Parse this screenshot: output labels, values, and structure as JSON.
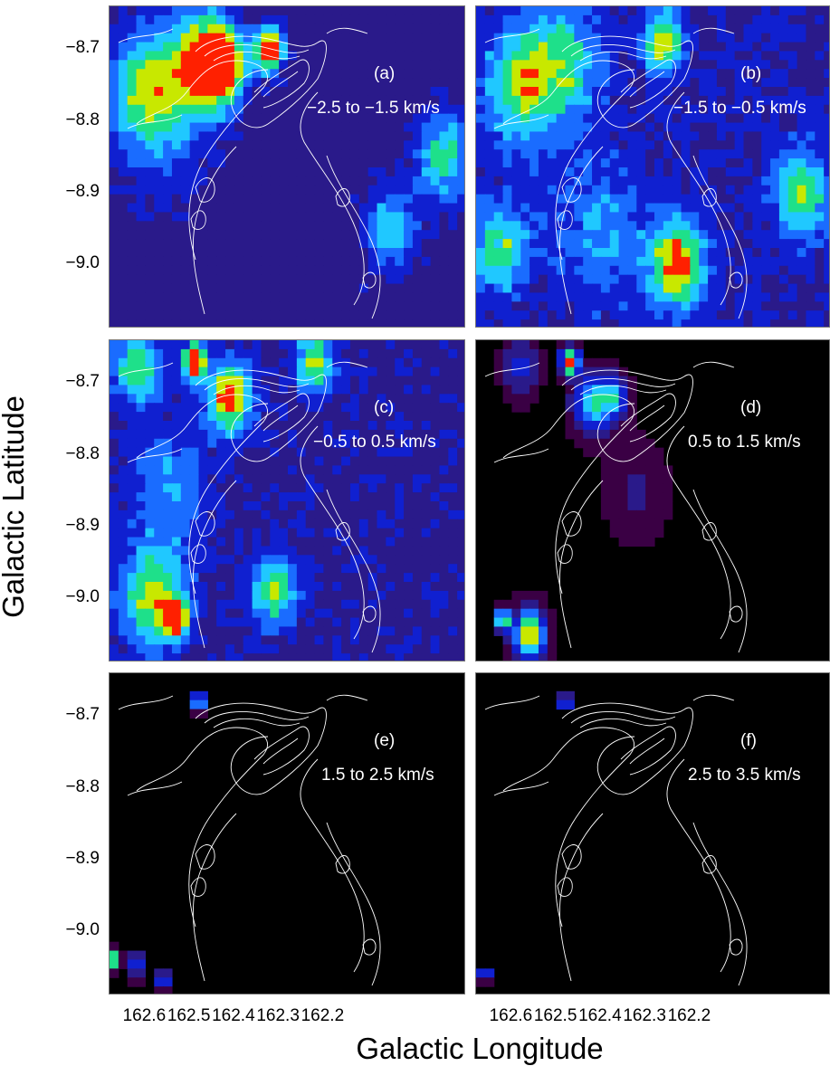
{
  "chart_data": {
    "type": "heatmap",
    "title": "",
    "xlabel": "Galactic Longitude",
    "ylabel": "Galactic Latitude",
    "x_ticks": [
      "162.6",
      "162.5",
      "162.4",
      "162.3",
      "162.2"
    ],
    "y_ticks": [
      "−8.7",
      "−8.8",
      "−8.9",
      "−9.0"
    ],
    "x_range": [
      162.68,
      161.88
    ],
    "y_range": [
      -9.09,
      -8.64
    ],
    "x_tick_values": [
      162.6,
      162.5,
      162.4,
      162.3,
      162.2
    ],
    "y_tick_values": [
      -8.7,
      -8.8,
      -8.9,
      -9.0
    ],
    "colormap": [
      "#000000",
      "#3a0044",
      "#2a1a8a",
      "#1020d0",
      "#1a6cff",
      "#20c8ff",
      "#1ee08a",
      "#c8e800",
      "#ff2000"
    ],
    "contour_color": "#ffffff",
    "panels": [
      {
        "label": "(a)",
        "range": "−2.5 to −1.5 km/s",
        "emission": [
          [
            162.47,
            -8.72,
            0.07,
            0.8
          ],
          [
            162.32,
            -8.7,
            0.03,
            0.98
          ],
          [
            162.6,
            -8.75,
            0.08,
            0.55
          ],
          [
            162.42,
            -8.72,
            0.05,
            0.6
          ],
          [
            161.93,
            -8.85,
            0.06,
            0.5
          ],
          [
            162.05,
            -8.95,
            0.06,
            0.4
          ],
          [
            162.56,
            -8.82,
            0.1,
            0.2
          ]
        ],
        "base": 0.18
      },
      {
        "label": "(b)",
        "range": "−1.5 to −0.5 km/s",
        "emission": [
          [
            162.58,
            -8.75,
            0.08,
            0.5
          ],
          [
            162.26,
            -8.69,
            0.04,
            0.65
          ],
          [
            162.23,
            -9.0,
            0.06,
            0.72
          ],
          [
            162.48,
            -8.72,
            0.08,
            0.4
          ],
          [
            161.95,
            -8.9,
            0.06,
            0.5
          ],
          [
            162.62,
            -8.98,
            0.06,
            0.45
          ],
          [
            162.4,
            -8.95,
            0.1,
            0.25
          ]
        ],
        "base": 0.25
      },
      {
        "label": "(c)",
        "range": "−0.5 to 0.5 km/s",
        "emission": [
          [
            162.49,
            -8.67,
            0.025,
            0.95
          ],
          [
            162.41,
            -8.72,
            0.05,
            0.75
          ],
          [
            162.53,
            -9.03,
            0.025,
            0.9
          ],
          [
            162.58,
            -9.0,
            0.07,
            0.6
          ],
          [
            162.31,
            -8.99,
            0.05,
            0.55
          ],
          [
            162.22,
            -8.67,
            0.04,
            0.6
          ],
          [
            162.62,
            -8.68,
            0.05,
            0.55
          ],
          [
            162.55,
            -8.85,
            0.08,
            0.3
          ]
        ],
        "base": 0.22
      },
      {
        "label": "(d)",
        "range": "0.5 to 1.5 km/s",
        "emission": [
          [
            162.47,
            -8.67,
            0.02,
            0.98
          ],
          [
            162.42,
            -8.73,
            0.04,
            0.62
          ],
          [
            162.56,
            -9.05,
            0.035,
            0.9
          ],
          [
            162.62,
            -9.03,
            0.015,
            0.95
          ],
          [
            162.37,
            -8.72,
            0.03,
            0.5
          ],
          [
            162.58,
            -8.68,
            0.04,
            0.3
          ],
          [
            162.32,
            -8.85,
            0.07,
            0.15
          ]
        ],
        "base": 0.0
      },
      {
        "label": "(e)",
        "range": "1.5 to 2.5 km/s",
        "emission": [
          [
            162.48,
            -8.68,
            0.012,
            0.9
          ],
          [
            162.67,
            -9.04,
            0.012,
            0.95
          ],
          [
            162.56,
            -9.07,
            0.012,
            0.7
          ],
          [
            162.62,
            -9.05,
            0.02,
            0.35
          ]
        ],
        "base": 0.0
      },
      {
        "label": "(f)",
        "range": "2.5 to 3.5 km/s",
        "emission": [
          [
            162.48,
            -8.68,
            0.01,
            0.85
          ],
          [
            162.66,
            -9.06,
            0.009,
            0.95
          ]
        ],
        "base": 0.0
      }
    ]
  }
}
